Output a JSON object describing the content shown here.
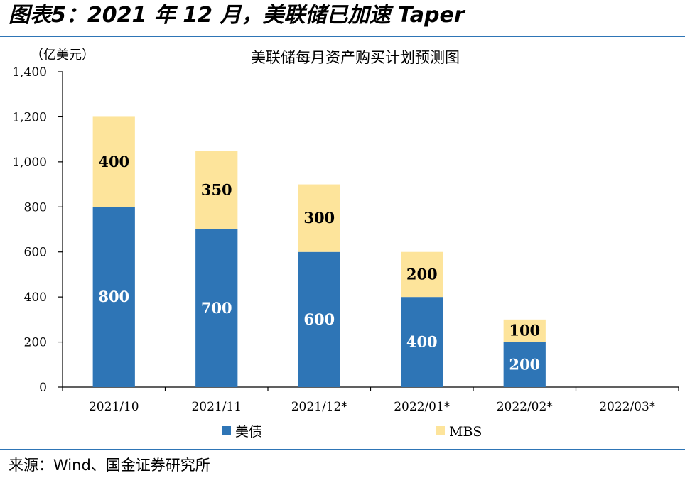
{
  "figure_title": "图表5：2021 年 12 月，美联储已加速 Taper",
  "source": "来源：Wind、国金证券研究所",
  "colors": {
    "treasury": "#2e75b6",
    "mbs": "#fde49b",
    "rule": "#2e75b6"
  },
  "chart_data": {
    "type": "bar",
    "stacked": true,
    "title": "美联储每月资产购买计划预测图",
    "unit": "（亿美元）",
    "categories": [
      "2021/10",
      "2021/11",
      "2021/12*",
      "2022/01*",
      "2022/02*",
      "2022/03*"
    ],
    "series": [
      {
        "name": "美债",
        "values": [
          800,
          700,
          600,
          400,
          200,
          0
        ],
        "color": "#2e75b6",
        "label_color": "#ffffff"
      },
      {
        "name": "MBS",
        "values": [
          400,
          350,
          300,
          200,
          100,
          0
        ],
        "color": "#fde49b",
        "label_color": "#000000"
      }
    ],
    "ylim": [
      0,
      1400
    ],
    "yticks": [
      "0",
      "200",
      "400",
      "600",
      "800",
      "1,000",
      "1,200",
      "1,400"
    ],
    "grid": false,
    "legend_position": "bottom"
  }
}
